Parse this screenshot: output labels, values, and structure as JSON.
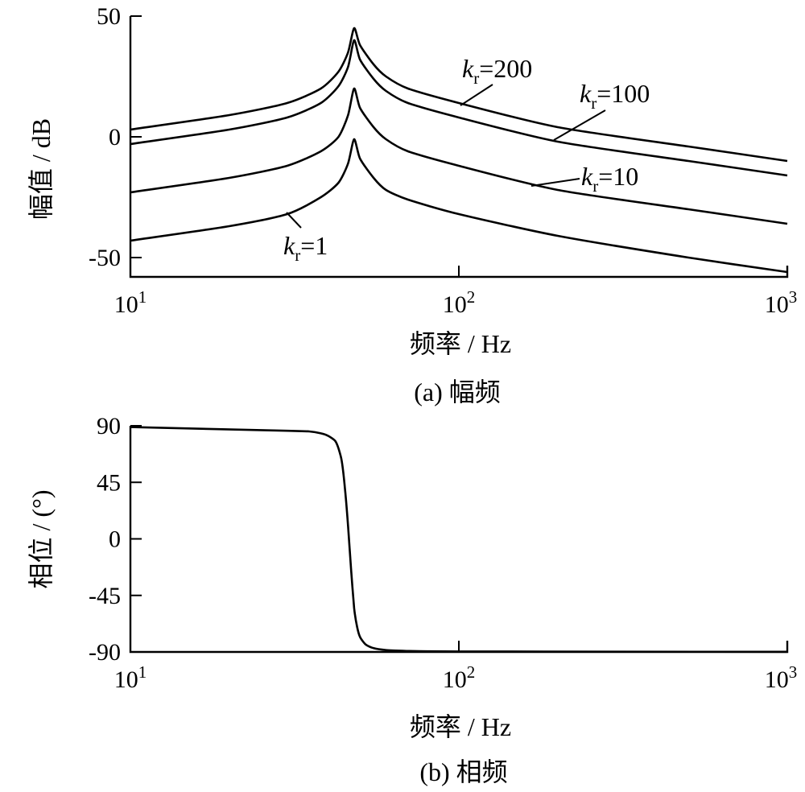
{
  "chart_data": [
    {
      "type": "line",
      "panel": "a",
      "caption": "(a)  幅频",
      "xlabel": "频率 / Hz",
      "ylabel": "幅值 / dB",
      "x_scale": "log",
      "xlim": [
        10,
        1000
      ],
      "ylim": [
        -58,
        50
      ],
      "x_ticks": [
        {
          "base": "10",
          "exp": "1"
        },
        {
          "base": "10",
          "exp": "2"
        },
        {
          "base": "10",
          "exp": "3"
        }
      ],
      "y_ticks": [
        "50",
        "0",
        "-50"
      ],
      "y_tick_values": [
        50,
        0,
        -50
      ],
      "grid": false,
      "series": [
        {
          "name": "k_r=200",
          "label_var": "k",
          "label_sub": "r",
          "label_rest": "=200",
          "x": [
            10,
            20,
            30,
            38,
            43,
            46,
            48,
            50,
            55,
            60,
            70,
            100,
            200,
            500,
            1000
          ],
          "y": [
            3,
            9,
            14,
            20,
            27,
            35,
            45,
            38,
            30,
            25,
            20,
            14,
            4,
            -4,
            -10
          ]
        },
        {
          "name": "k_r=100",
          "label_var": "k",
          "label_sub": "r",
          "label_rest": "=100",
          "x": [
            10,
            20,
            30,
            38,
            43,
            46,
            48,
            50,
            55,
            60,
            70,
            100,
            200,
            500,
            1000
          ],
          "y": [
            -3,
            3,
            8,
            14,
            21,
            29,
            40,
            32,
            24,
            19,
            14,
            8,
            -2,
            -10,
            -16
          ]
        },
        {
          "name": "k_r=10",
          "label_var": "k",
          "label_sub": "r",
          "label_rest": "=10",
          "x": [
            10,
            20,
            30,
            38,
            43,
            46,
            48,
            50,
            55,
            60,
            70,
            100,
            200,
            500,
            1000
          ],
          "y": [
            -23,
            -17,
            -12,
            -6,
            0,
            9,
            20,
            12,
            4,
            -1,
            -6,
            -12,
            -22,
            -30,
            -36
          ]
        },
        {
          "name": "k_r=1",
          "label_var": "k",
          "label_sub": "r",
          "label_rest": "=1",
          "x": [
            10,
            20,
            30,
            38,
            43,
            46,
            48,
            50,
            55,
            60,
            70,
            100,
            200,
            500,
            1000
          ],
          "y": [
            -43,
            -37,
            -32,
            -25,
            -19,
            -11,
            -1,
            -9,
            -17,
            -22,
            -26,
            -32,
            -41,
            -50,
            -56
          ]
        }
      ]
    },
    {
      "type": "line",
      "panel": "b",
      "caption": "(b)  相频",
      "xlabel": "频率 / Hz",
      "ylabel": "相位 / (°)",
      "x_scale": "log",
      "xlim": [
        10,
        1000
      ],
      "ylim": [
        -90,
        90
      ],
      "x_ticks": [
        {
          "base": "10",
          "exp": "1"
        },
        {
          "base": "10",
          "exp": "2"
        },
        {
          "base": "10",
          "exp": "3"
        }
      ],
      "y_ticks": [
        "90",
        "45",
        "0",
        "-45",
        "-90"
      ],
      "y_tick_values": [
        90,
        45,
        0,
        -45,
        -90
      ],
      "grid": false,
      "series": [
        {
          "x": [
            10,
            30,
            35,
            38,
            40,
            42,
            43,
            44,
            45,
            46,
            47,
            48,
            49,
            50,
            52,
            55,
            60,
            70,
            80,
            100,
            300,
            1000
          ],
          "y": [
            89,
            86,
            85.5,
            84,
            82,
            78,
            72,
            62,
            40,
            10,
            -25,
            -55,
            -70,
            -78,
            -84,
            -87,
            -88.5,
            -89.2,
            -89.5,
            -89.6,
            -89.8,
            -89.9
          ]
        }
      ]
    }
  ]
}
